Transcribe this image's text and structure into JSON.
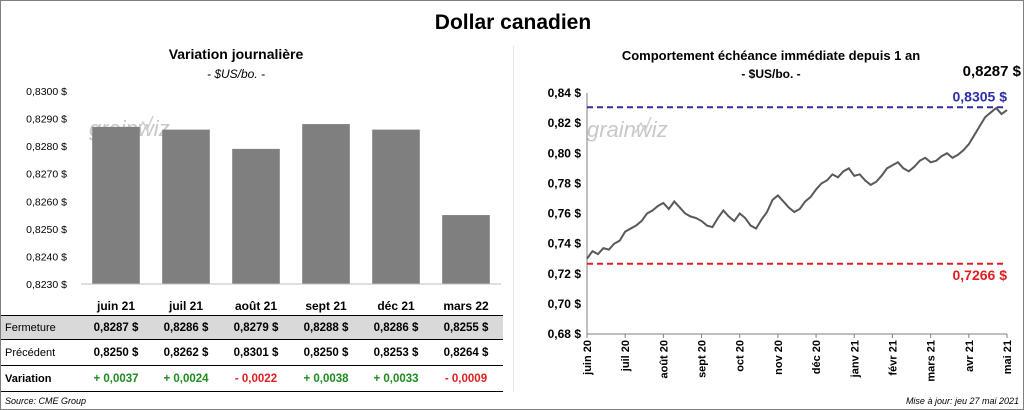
{
  "title": "Dollar canadien",
  "left": {
    "title": "Variation  journalière",
    "subtitle": "- $US/bo. -"
  },
  "right": {
    "title": "Comportement échéance immédiate depuis 1 an",
    "subtitle": "- $US/bo. -",
    "last_value": "0,8287 $",
    "high_label": "0,8305  $",
    "low_label": "0,7266  $"
  },
  "watermark": "grainwiz",
  "colors": {
    "bar": "#7f7f7f",
    "line": "#595959",
    "high": "#2e2ea8",
    "low": "#e02020",
    "positive": "#1e8c1e",
    "negative": "#e02020"
  },
  "table": {
    "row_labels": [
      "Fermeture",
      "Précédent",
      "Variation"
    ],
    "fermeture": [
      "0,8287  $",
      "0,8286  $",
      "0,8279  $",
      "0,8288  $",
      "0,8286  $",
      "0,8255  $"
    ],
    "precedent": [
      "0,8250  $",
      "0,8262  $",
      "0,8301  $",
      "0,8250  $",
      "0,8253  $",
      "0,8264  $"
    ],
    "variation": [
      "+ 0,0037",
      "+ 0,0024",
      "- 0,0022",
      "+ 0,0038",
      "+ 0,0033",
      "- 0,0009"
    ],
    "variation_sign": [
      "pos",
      "pos",
      "neg",
      "pos",
      "pos",
      "neg"
    ]
  },
  "footer": {
    "source": "Source: CME Group",
    "updated": "Mise à jour: jeu 27 mai 2021"
  },
  "chart_data": [
    {
      "type": "bar",
      "title": "Variation  journalière",
      "subtitle": "- $US/bo. -",
      "categories": [
        "juin 21",
        "juil 21",
        "août 21",
        "sept 21",
        "déc 21",
        "mars 22"
      ],
      "values": [
        0.8287,
        0.8286,
        0.8279,
        0.8288,
        0.8286,
        0.8255
      ],
      "ylim": [
        0.823,
        0.83
      ],
      "yticks": [
        "0,8230 $",
        "0,8240 $",
        "0,8250 $",
        "0,8260 $",
        "0,8270 $",
        "0,8280 $",
        "0,8290 $",
        "0,8300 $"
      ],
      "grid": false
    },
    {
      "type": "line",
      "title": "Comportement échéance immédiate depuis 1 an",
      "subtitle": "- $US/bo. -",
      "x_labels": [
        "juin 20",
        "juil 20",
        "août 20",
        "sept 20",
        "oct 20",
        "nov 20",
        "déc 20",
        "janv 21",
        "févr 21",
        "mars 21",
        "avr 21",
        "mai 21"
      ],
      "ylim": [
        0.68,
        0.84
      ],
      "yticks": [
        "0,68 $",
        "0,70 $",
        "0,72 $",
        "0,74 $",
        "0,76 $",
        "0,78 $",
        "0,80 $",
        "0,82 $",
        "0,84 $"
      ],
      "reference_lines": [
        {
          "label": "0,8305  $",
          "value": 0.8305
        },
        {
          "label": "0,7266  $",
          "value": 0.7266
        }
      ],
      "series": [
        {
          "values": [
            0.73,
            0.735,
            0.733,
            0.737,
            0.736,
            0.74,
            0.742,
            0.748,
            0.75,
            0.752,
            0.755,
            0.76,
            0.762,
            0.765,
            0.767,
            0.763,
            0.768,
            0.764,
            0.76,
            0.758,
            0.757,
            0.755,
            0.752,
            0.751,
            0.757,
            0.762,
            0.758,
            0.755,
            0.76,
            0.757,
            0.752,
            0.75,
            0.756,
            0.761,
            0.769,
            0.772,
            0.768,
            0.764,
            0.761,
            0.763,
            0.768,
            0.771,
            0.776,
            0.78,
            0.782,
            0.786,
            0.784,
            0.788,
            0.79,
            0.785,
            0.786,
            0.782,
            0.779,
            0.781,
            0.785,
            0.79,
            0.792,
            0.794,
            0.79,
            0.788,
            0.791,
            0.795,
            0.797,
            0.794,
            0.795,
            0.798,
            0.8,
            0.797,
            0.799,
            0.802,
            0.806,
            0.812,
            0.818,
            0.824,
            0.827,
            0.83,
            0.826,
            0.8287
          ]
        }
      ]
    }
  ]
}
